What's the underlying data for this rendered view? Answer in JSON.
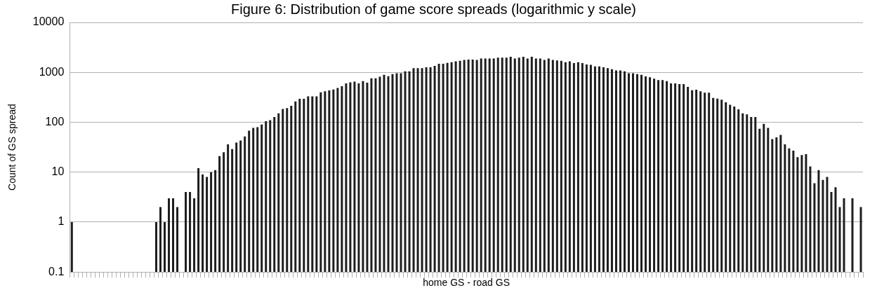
{
  "chart_data": {
    "type": "bar",
    "title": "Figure 6: Distribution of game score spreads (logarithmic y scale)",
    "xlabel": "home GS - road GS",
    "ylabel": "Count of GS spread",
    "categories": [
      null,
      null,
      null,
      null,
      null,
      null,
      null,
      null,
      null,
      null,
      null,
      null,
      null,
      null,
      null,
      null,
      null,
      null,
      null,
      null,
      null,
      null,
      null,
      null,
      null,
      null,
      null,
      null,
      null,
      null,
      null,
      null,
      null,
      null,
      null,
      null,
      null,
      null,
      null,
      null,
      null,
      null,
      null,
      null,
      null,
      null,
      null,
      null,
      null,
      null,
      null,
      null,
      null,
      null,
      null,
      null,
      null,
      null,
      null,
      null,
      null,
      null,
      null,
      null,
      null,
      null,
      null,
      null,
      null,
      null,
      null,
      null,
      null,
      null,
      null,
      null,
      null,
      null,
      null,
      null,
      null,
      null,
      null,
      null,
      null,
      null,
      null,
      null,
      null,
      null,
      null,
      null,
      null,
      null,
      null,
      null,
      null,
      null,
      null,
      null,
      null,
      null,
      null,
      null,
      null,
      null,
      null,
      null,
      null,
      null,
      null,
      null,
      null,
      null,
      null,
      null,
      null,
      null,
      null,
      null,
      null,
      null,
      null,
      null,
      null,
      null,
      null,
      null,
      null,
      null,
      null,
      null,
      null,
      null,
      null,
      null,
      null,
      null,
      null,
      null,
      null,
      null,
      null,
      null,
      null,
      null,
      null,
      null,
      null,
      null,
      null,
      null,
      null,
      null,
      null,
      null,
      null,
      null,
      null,
      null,
      null,
      null,
      null,
      null,
      null,
      null,
      null,
      null,
      null,
      null,
      null,
      null,
      null,
      null,
      null,
      null,
      null,
      null,
      null,
      null,
      null,
      null,
      null,
      null,
      null,
      null,
      null,
      null
    ],
    "values": [
      1,
      null,
      null,
      null,
      null,
      null,
      null,
      null,
      null,
      null,
      null,
      null,
      null,
      null,
      null,
      null,
      null,
      null,
      null,
      null,
      1,
      2,
      1,
      3,
      3,
      2,
      null,
      4,
      4,
      3,
      12,
      9,
      8,
      10,
      11,
      21,
      25,
      36,
      29,
      39,
      43,
      52,
      68,
      77,
      80,
      90,
      105,
      110,
      127,
      151,
      184,
      192,
      213,
      262,
      295,
      295,
      330,
      330,
      330,
      399,
      417,
      434,
      453,
      488,
      530,
      600,
      630,
      650,
      600,
      670,
      620,
      760,
      760,
      820,
      890,
      840,
      920,
      960,
      960,
      1050,
      1050,
      1210,
      1210,
      1210,
      1260,
      1260,
      1350,
      1480,
      1480,
      1550,
      1600,
      1660,
      1700,
      1770,
      1810,
      1810,
      1770,
      1890,
      1890,
      1890,
      1890,
      1970,
      1970,
      1970,
      2050,
      1890,
      1970,
      2050,
      1890,
      2050,
      1890,
      1890,
      1770,
      1890,
      1770,
      1730,
      1700,
      1600,
      1660,
      1530,
      1600,
      1530,
      1440,
      1420,
      1320,
      1320,
      1260,
      1210,
      1160,
      1090,
      1090,
      1050,
      960,
      960,
      920,
      890,
      830,
      800,
      750,
      700,
      700,
      670,
      600,
      600,
      580,
      580,
      510,
      440,
      450,
      417,
      391,
      391,
      307,
      298,
      283,
      252,
      224,
      206,
      182,
      151,
      144,
      127,
      127,
      74,
      93,
      77,
      46,
      50,
      56,
      36,
      30,
      27,
      20,
      22,
      23,
      13,
      6,
      11,
      7,
      8,
      4,
      5,
      2,
      3,
      null,
      3,
      null,
      2
    ],
    "color": "#1e1e1e",
    "log": true,
    "ylim": [
      0.1,
      10000
    ],
    "yticks": [
      {
        "value": 0.1,
        "label": "0.1"
      },
      1,
      10,
      100,
      1000,
      10000
    ],
    "grid": "y",
    "tick_labels": "y"
  }
}
